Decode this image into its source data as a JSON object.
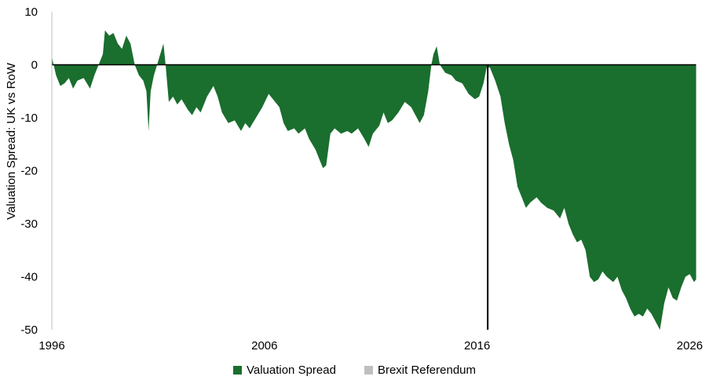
{
  "chart_data": {
    "type": "area",
    "title": "",
    "xlabel": "",
    "ylabel": "Valuation Spread: UK vs RoW",
    "xlim": [
      1996,
      2026.5
    ],
    "ylim": [
      -50,
      10
    ],
    "x_ticks": [
      1996,
      2006,
      2016,
      2026
    ],
    "y_ticks": [
      10,
      0,
      -10,
      -20,
      -30,
      -40,
      -50
    ],
    "grid": false,
    "legend_position": "bottom",
    "legend": [
      {
        "label": "Valuation Spread",
        "color": "#1a6e2e"
      },
      {
        "label": "Brexit Referendum",
        "color": "#bfbfbf"
      }
    ],
    "marker_x": 2016.5,
    "series": [
      {
        "name": "Valuation Spread",
        "color": "#1a6e2e",
        "points": [
          [
            1996.0,
            1.5
          ],
          [
            1996.2,
            -2
          ],
          [
            1996.4,
            -4
          ],
          [
            1996.6,
            -3.5
          ],
          [
            1996.8,
            -2.5
          ],
          [
            1997.0,
            -4.5
          ],
          [
            1997.2,
            -3
          ],
          [
            1997.5,
            -2.5
          ],
          [
            1997.8,
            -4.5
          ],
          [
            1998.0,
            -2
          ],
          [
            1998.2,
            0
          ],
          [
            1998.4,
            2
          ],
          [
            1998.5,
            6.5
          ],
          [
            1998.7,
            5.5
          ],
          [
            1998.9,
            6
          ],
          [
            1999.1,
            4
          ],
          [
            1999.3,
            3
          ],
          [
            1999.5,
            5.5
          ],
          [
            1999.7,
            4
          ],
          [
            1999.9,
            0
          ],
          [
            2000.1,
            -2
          ],
          [
            2000.3,
            -3
          ],
          [
            2000.45,
            -5
          ],
          [
            2000.55,
            -12.5
          ],
          [
            2000.65,
            -5
          ],
          [
            2000.8,
            -2
          ],
          [
            2000.95,
            0
          ],
          [
            2001.1,
            2
          ],
          [
            2001.25,
            4
          ],
          [
            2001.35,
            0
          ],
          [
            2001.5,
            -7
          ],
          [
            2001.7,
            -6
          ],
          [
            2001.9,
            -7.5
          ],
          [
            2002.1,
            -6.5
          ],
          [
            2002.4,
            -8.5
          ],
          [
            2002.6,
            -9.5
          ],
          [
            2002.8,
            -8
          ],
          [
            2003.0,
            -9
          ],
          [
            2003.3,
            -6
          ],
          [
            2003.6,
            -4
          ],
          [
            2003.8,
            -6
          ],
          [
            2004.0,
            -9
          ],
          [
            2004.3,
            -11
          ],
          [
            2004.6,
            -10.5
          ],
          [
            2004.9,
            -12.5
          ],
          [
            2005.1,
            -11
          ],
          [
            2005.3,
            -12
          ],
          [
            2005.6,
            -10
          ],
          [
            2005.9,
            -8
          ],
          [
            2006.2,
            -5.5
          ],
          [
            2006.5,
            -7
          ],
          [
            2006.7,
            -8
          ],
          [
            2006.9,
            -11
          ],
          [
            2007.1,
            -12.5
          ],
          [
            2007.4,
            -12
          ],
          [
            2007.6,
            -13
          ],
          [
            2007.9,
            -12
          ],
          [
            2008.1,
            -14
          ],
          [
            2008.4,
            -16
          ],
          [
            2008.6,
            -18
          ],
          [
            2008.75,
            -19.5
          ],
          [
            2008.9,
            -19
          ],
          [
            2009.1,
            -13
          ],
          [
            2009.3,
            -12
          ],
          [
            2009.6,
            -13
          ],
          [
            2009.9,
            -12.5
          ],
          [
            2010.1,
            -13
          ],
          [
            2010.4,
            -12
          ],
          [
            2010.7,
            -14
          ],
          [
            2010.9,
            -15.5
          ],
          [
            2011.1,
            -13
          ],
          [
            2011.4,
            -11.5
          ],
          [
            2011.6,
            -9
          ],
          [
            2011.8,
            -11
          ],
          [
            2012.0,
            -10.5
          ],
          [
            2012.3,
            -9
          ],
          [
            2012.6,
            -7
          ],
          [
            2012.9,
            -8
          ],
          [
            2013.1,
            -9.5
          ],
          [
            2013.3,
            -11
          ],
          [
            2013.5,
            -9.5
          ],
          [
            2013.7,
            -5
          ],
          [
            2013.85,
            0
          ],
          [
            2013.95,
            2
          ],
          [
            2014.1,
            3.5
          ],
          [
            2014.25,
            0
          ],
          [
            2014.5,
            -1.5
          ],
          [
            2014.8,
            -2
          ],
          [
            2015.0,
            -3
          ],
          [
            2015.3,
            -3.5
          ],
          [
            2015.6,
            -5.5
          ],
          [
            2015.9,
            -6.5
          ],
          [
            2016.1,
            -6
          ],
          [
            2016.3,
            -3.5
          ],
          [
            2016.45,
            -0.5
          ],
          [
            2016.6,
            -0.5
          ],
          [
            2016.85,
            -3
          ],
          [
            2017.1,
            -6
          ],
          [
            2017.3,
            -11
          ],
          [
            2017.5,
            -15
          ],
          [
            2017.7,
            -18
          ],
          [
            2017.9,
            -23
          ],
          [
            2018.1,
            -25
          ],
          [
            2018.3,
            -27
          ],
          [
            2018.5,
            -26
          ],
          [
            2018.8,
            -25
          ],
          [
            2019.0,
            -26
          ],
          [
            2019.3,
            -27
          ],
          [
            2019.6,
            -27.5
          ],
          [
            2019.9,
            -29
          ],
          [
            2020.1,
            -27
          ],
          [
            2020.3,
            -30
          ],
          [
            2020.5,
            -32
          ],
          [
            2020.7,
            -33.5
          ],
          [
            2020.9,
            -33
          ],
          [
            2021.1,
            -35
          ],
          [
            2021.3,
            -40
          ],
          [
            2021.5,
            -41
          ],
          [
            2021.7,
            -40.5
          ],
          [
            2021.9,
            -39
          ],
          [
            2022.1,
            -40
          ],
          [
            2022.4,
            -41
          ],
          [
            2022.6,
            -40
          ],
          [
            2022.8,
            -42.5
          ],
          [
            2023.0,
            -44
          ],
          [
            2023.2,
            -46
          ],
          [
            2023.4,
            -47.5
          ],
          [
            2023.6,
            -47
          ],
          [
            2023.8,
            -47.5
          ],
          [
            2024.0,
            -46
          ],
          [
            2024.2,
            -47
          ],
          [
            2024.4,
            -48.5
          ],
          [
            2024.6,
            -50
          ],
          [
            2024.8,
            -45
          ],
          [
            2025.0,
            -42
          ],
          [
            2025.2,
            -44
          ],
          [
            2025.4,
            -44.5
          ],
          [
            2025.6,
            -42
          ],
          [
            2025.8,
            -40
          ],
          [
            2026.0,
            -39.5
          ],
          [
            2026.2,
            -41
          ],
          [
            2026.3,
            -40.5
          ]
        ]
      }
    ]
  }
}
